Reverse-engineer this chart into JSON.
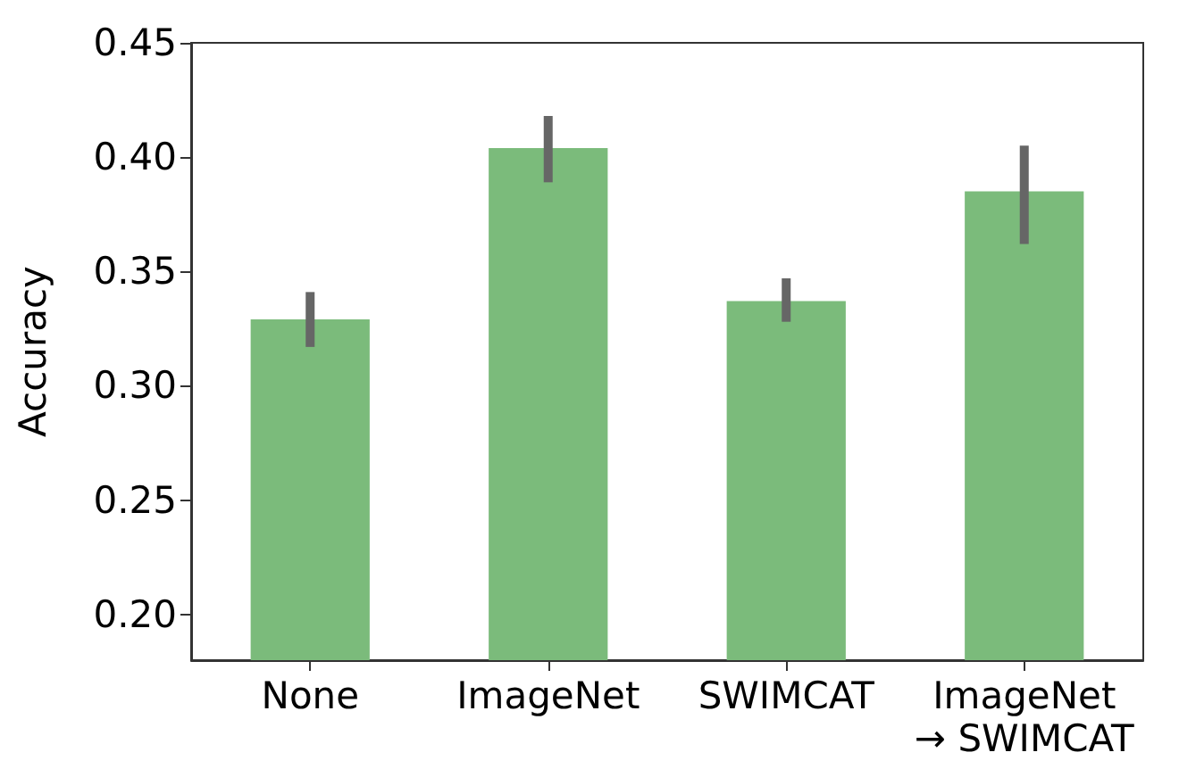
{
  "chart_data": {
    "type": "bar",
    "ylabel": "Accuracy",
    "categories": [
      "None",
      "ImageNet",
      "SWIMCAT",
      "ImageNet\n→ SWIMCAT"
    ],
    "values": [
      0.329,
      0.404,
      0.337,
      0.385
    ],
    "color": "#7bbb7b",
    "errors": [
      [
        0.317,
        0.341
      ],
      [
        0.389,
        0.418
      ],
      [
        0.328,
        0.347
      ],
      [
        0.362,
        0.405
      ]
    ],
    "ylim": [
      0.18,
      0.45
    ],
    "yticks": [
      {
        "value": 0.2,
        "label": "0.20"
      },
      0.25,
      {
        "value": 0.3,
        "label": "0.30"
      },
      0.35,
      {
        "value": 0.4,
        "label": "0.40"
      },
      0.45
    ],
    "grid": false
  }
}
